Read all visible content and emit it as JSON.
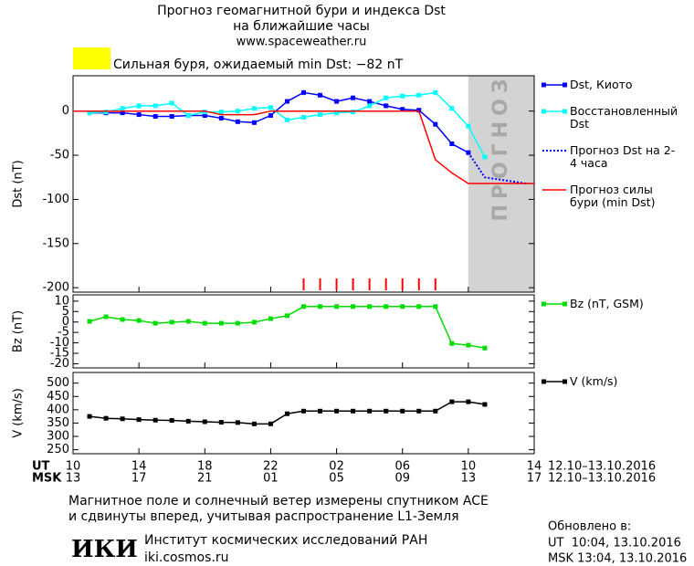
{
  "header": {
    "title": "Прогноз геомагнитной бури и индекса Dst",
    "subtitle": "на ближайшие часы",
    "url": "www.spaceweather.ru"
  },
  "chart_data": [
    {
      "type": "line",
      "ylabel": "Dst (nT)",
      "xlim": [
        0,
        28
      ],
      "ylim": [
        -205,
        40
      ],
      "yticks": [
        0,
        -50,
        -100,
        -150,
        -200
      ],
      "annotation": "Сильная буря, ожидаемый min Dst: −82 nT",
      "annotation_color": "#ffff00",
      "forecast_region": [
        24,
        28
      ],
      "forecast_label": "ПРОГНОЗ",
      "forecast_color": "#d3d3d3",
      "storm_hours": [
        14,
        15,
        16,
        17,
        18,
        19,
        20,
        21,
        22
      ],
      "storm_color": "#ff0000",
      "series": [
        {
          "name": "Dst, Киото",
          "color": "#0000ff",
          "style": "solid",
          "marker": "square",
          "x": [
            1,
            2,
            3,
            4,
            5,
            6,
            7,
            8,
            9,
            10,
            11,
            12,
            13,
            14,
            15,
            16,
            17,
            18,
            19,
            20,
            21,
            22,
            23,
            24
          ],
          "values": [
            -2,
            -2,
            -2,
            -4,
            -6,
            -6,
            -5,
            -5,
            -8,
            -12,
            -13,
            -5,
            11,
            21,
            18,
            11,
            15,
            11,
            6,
            2,
            1,
            -15,
            -37,
            -47
          ]
        },
        {
          "name": "Восстановленный Dst",
          "color": "#00ffff",
          "style": "solid",
          "marker": "square",
          "x": [
            1,
            2,
            3,
            4,
            5,
            6,
            7,
            8,
            9,
            10,
            11,
            12,
            13,
            14,
            15,
            16,
            17,
            18,
            19,
            20,
            21,
            22,
            23,
            24,
            25
          ],
          "values": [
            -2,
            -1,
            3,
            6,
            6,
            9,
            -5,
            -1,
            -1,
            0,
            3,
            4,
            -10,
            -7,
            -4,
            -2,
            -1,
            6,
            15,
            17,
            18,
            21,
            3,
            -17,
            -52
          ]
        },
        {
          "name": "Прогноз Dst на 2-4 часа",
          "color": "#0000ff",
          "style": "dotted",
          "marker": "none",
          "x": [
            24,
            25,
            27.5
          ],
          "values": [
            -47,
            -75,
            -82
          ]
        },
        {
          "name": "Прогноз силы бури (min Dst)",
          "color": "#ff0000",
          "style": "solid",
          "marker": "none",
          "x": [
            0,
            8,
            9,
            11,
            12,
            21,
            22,
            23,
            24,
            28
          ],
          "values": [
            0,
            0,
            -4,
            -4,
            0,
            0,
            -55,
            -70,
            -82,
            -82
          ]
        }
      ]
    },
    {
      "type": "line",
      "ylabel": "Bz (nT)",
      "xlim": [
        0,
        28
      ],
      "ylim": [
        -22,
        13
      ],
      "yticks": [
        10,
        5,
        0,
        -5,
        -10,
        -15,
        -20
      ],
      "series": [
        {
          "name": "Bz (nT, GSM)",
          "color": "#00dd00",
          "style": "solid",
          "marker": "square",
          "x": [
            1,
            2,
            3,
            4,
            5,
            6,
            7,
            8,
            9,
            10,
            11,
            12,
            13,
            14,
            15,
            16,
            17,
            18,
            19,
            20,
            21,
            22,
            23,
            24,
            25
          ],
          "values": [
            0.3,
            2.5,
            1.2,
            0.7,
            -0.6,
            -0.1,
            0.3,
            -0.6,
            -0.6,
            -0.6,
            -0.1,
            1.6,
            3,
            7.4,
            7.4,
            7.4,
            7.4,
            7.4,
            7.4,
            7.4,
            7.4,
            7.4,
            -10.3,
            -11.1,
            -12.5
          ]
        }
      ]
    },
    {
      "type": "line",
      "ylabel": "V (km/s)",
      "xlim": [
        0,
        28
      ],
      "ylim": [
        235,
        540
      ],
      "yticks": [
        500,
        450,
        400,
        350,
        300,
        250
      ],
      "xticks": [
        {
          "value": 0,
          "label": "10"
        },
        {
          "value": 4,
          "label": "14"
        },
        {
          "value": 8,
          "label": "18"
        },
        {
          "value": 12,
          "label": "22"
        },
        {
          "value": 16,
          "label": "02"
        },
        {
          "value": 20,
          "label": "06"
        },
        {
          "value": 24,
          "label": "10"
        },
        {
          "value": 28,
          "label": "14"
        }
      ],
      "xticks_msk": [
        {
          "value": 0,
          "label": "13"
        },
        {
          "value": 4,
          "label": "17"
        },
        {
          "value": 8,
          "label": "21"
        },
        {
          "value": 12,
          "label": "01"
        },
        {
          "value": 16,
          "label": "05"
        },
        {
          "value": 20,
          "label": "09"
        },
        {
          "value": 24,
          "label": "13"
        },
        {
          "value": 28,
          "label": "17"
        }
      ],
      "x_label_ut": "UT",
      "x_label_msk": "MSK",
      "date_range": "12.10–13.10.2016",
      "series": [
        {
          "name": "V (km/s)",
          "color": "#000000",
          "style": "solid",
          "marker": "square",
          "x": [
            1,
            2,
            3,
            4,
            5,
            6,
            7,
            8,
            9,
            10,
            11,
            12,
            13,
            14,
            15,
            16,
            17,
            18,
            19,
            20,
            21,
            22,
            23,
            24,
            25
          ],
          "values": [
            375,
            368,
            366,
            363,
            361,
            360,
            357,
            355,
            353,
            352,
            347,
            347,
            385,
            395,
            395,
            395,
            395,
            395,
            395,
            395,
            395,
            395,
            430,
            430,
            420
          ]
        }
      ]
    }
  ],
  "footer": {
    "note_line1": "Магнитное поле и солнечный ветер измерены спутником ACE",
    "note_line2": "и сдвинуты вперед, учитывая распространение L1-Земля",
    "logo": "ИКИ",
    "institute": "Институт космических исследований РАН",
    "site": "iki.cosmos.ru",
    "updated": "Обновлено в:",
    "updated_ut": "UT  10:04, 13.10.2016",
    "updated_msk": "MSK 13:04, 13.10.2016"
  }
}
